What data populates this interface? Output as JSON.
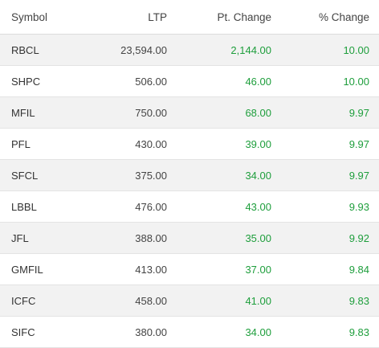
{
  "columns": {
    "symbol": "Symbol",
    "ltp": "LTP",
    "pt_change": "Pt. Change",
    "pct_change": "% Change"
  },
  "rows": [
    {
      "symbol": "RBCL",
      "ltp": "23,594.00",
      "pt_change": "2,144.00",
      "pct_change": "10.00"
    },
    {
      "symbol": "SHPC",
      "ltp": "506.00",
      "pt_change": "46.00",
      "pct_change": "10.00"
    },
    {
      "symbol": "MFIL",
      "ltp": "750.00",
      "pt_change": "68.00",
      "pct_change": "9.97"
    },
    {
      "symbol": "PFL",
      "ltp": "430.00",
      "pt_change": "39.00",
      "pct_change": "9.97"
    },
    {
      "symbol": "SFCL",
      "ltp": "375.00",
      "pt_change": "34.00",
      "pct_change": "9.97"
    },
    {
      "symbol": "LBBL",
      "ltp": "476.00",
      "pt_change": "43.00",
      "pct_change": "9.93"
    },
    {
      "symbol": "JFL",
      "ltp": "388.00",
      "pt_change": "35.00",
      "pct_change": "9.92"
    },
    {
      "symbol": "GMFIL",
      "ltp": "413.00",
      "pt_change": "37.00",
      "pct_change": "9.84"
    },
    {
      "symbol": "ICFC",
      "ltp": "458.00",
      "pt_change": "41.00",
      "pct_change": "9.83"
    },
    {
      "symbol": "SIFC",
      "ltp": "380.00",
      "pt_change": "34.00",
      "pct_change": "9.83"
    }
  ],
  "colors": {
    "positive": "#1e9e3c",
    "stripe": "#f2f2f2"
  }
}
